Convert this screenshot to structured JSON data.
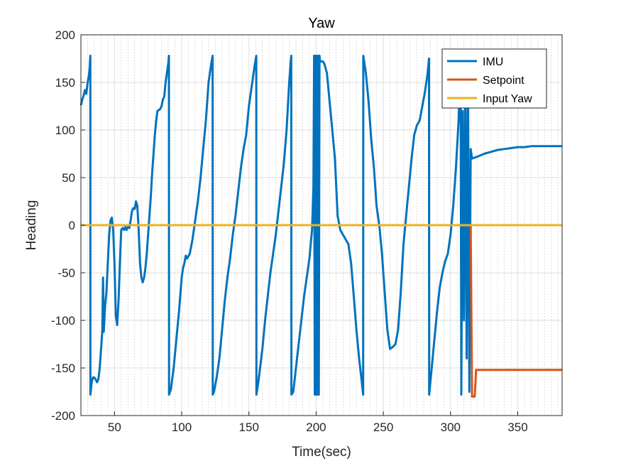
{
  "chart_data": {
    "type": "line",
    "title": "Yaw",
    "xlabel": "Time(sec)",
    "ylabel": "Heading",
    "xlim": [
      25,
      383
    ],
    "ylim": [
      -200,
      200
    ],
    "xticks": [
      50,
      100,
      150,
      200,
      250,
      300,
      350
    ],
    "yticks": [
      -200,
      -150,
      -100,
      -50,
      0,
      50,
      100,
      150,
      200
    ],
    "grid": true,
    "minor_x_grid_spacing": 5,
    "legend_position": "top-right",
    "series": [
      {
        "name": "IMU",
        "color": "#0072BD",
        "points": [
          [
            25,
            126
          ],
          [
            26,
            132
          ],
          [
            27,
            136
          ],
          [
            28,
            142
          ],
          [
            29,
            138
          ],
          [
            30,
            150
          ],
          [
            31,
            158
          ],
          [
            31.5,
            165
          ],
          [
            32,
            178
          ],
          [
            32.1,
            -178
          ],
          [
            33,
            -165
          ],
          [
            34,
            -160
          ],
          [
            35,
            -160
          ],
          [
            36,
            -162
          ],
          [
            37,
            -165
          ],
          [
            38,
            -162
          ],
          [
            39,
            -150
          ],
          [
            40,
            -130
          ],
          [
            41,
            -110
          ],
          [
            41.5,
            -55
          ],
          [
            42,
            -112
          ],
          [
            43,
            -85
          ],
          [
            44,
            -70
          ],
          [
            45,
            -40
          ],
          [
            46,
            -10
          ],
          [
            47,
            5
          ],
          [
            48,
            8
          ],
          [
            49,
            -5
          ],
          [
            50,
            -40
          ],
          [
            51,
            -95
          ],
          [
            52,
            -105
          ],
          [
            53,
            -80
          ],
          [
            54,
            -40
          ],
          [
            55,
            -5
          ],
          [
            56,
            -3
          ],
          [
            57,
            -5
          ],
          [
            58,
            -2
          ],
          [
            59,
            -5
          ],
          [
            60,
            -1
          ],
          [
            61,
            -3
          ],
          [
            62,
            5
          ],
          [
            63,
            15
          ],
          [
            64,
            18
          ],
          [
            65,
            17
          ],
          [
            66,
            25
          ],
          [
            67,
            20
          ],
          [
            68,
            -5
          ],
          [
            69,
            -40
          ],
          [
            70,
            -55
          ],
          [
            71,
            -60
          ],
          [
            72,
            -55
          ],
          [
            73,
            -45
          ],
          [
            74,
            -30
          ],
          [
            75,
            -10
          ],
          [
            76,
            10
          ],
          [
            77,
            30
          ],
          [
            78,
            55
          ],
          [
            79,
            75
          ],
          [
            80,
            95
          ],
          [
            81,
            110
          ],
          [
            82,
            120
          ],
          [
            84,
            122
          ],
          [
            85,
            125
          ],
          [
            86,
            132
          ],
          [
            87,
            135
          ],
          [
            88,
            150
          ],
          [
            89,
            160
          ],
          [
            90,
            170
          ],
          [
            90.5,
            178
          ],
          [
            90.6,
            -178
          ],
          [
            92,
            -172
          ],
          [
            94,
            -150
          ],
          [
            96,
            -120
          ],
          [
            98,
            -90
          ],
          [
            100,
            -55
          ],
          [
            101,
            -45
          ],
          [
            102,
            -40
          ],
          [
            103,
            -32
          ],
          [
            104,
            -35
          ],
          [
            106,
            -30
          ],
          [
            108,
            -15
          ],
          [
            110,
            5
          ],
          [
            112,
            25
          ],
          [
            114,
            50
          ],
          [
            116,
            80
          ],
          [
            118,
            110
          ],
          [
            119,
            130
          ],
          [
            120,
            150
          ],
          [
            121,
            160
          ],
          [
            122,
            170
          ],
          [
            123,
            178
          ],
          [
            123.1,
            -178
          ],
          [
            124,
            -175
          ],
          [
            126,
            -160
          ],
          [
            128,
            -140
          ],
          [
            130,
            -110
          ],
          [
            132,
            -80
          ],
          [
            134,
            -55
          ],
          [
            136,
            -35
          ],
          [
            138,
            -10
          ],
          [
            140,
            10
          ],
          [
            142,
            35
          ],
          [
            144,
            60
          ],
          [
            146,
            80
          ],
          [
            148,
            95
          ],
          [
            150,
            125
          ],
          [
            152,
            145
          ],
          [
            154,
            165
          ],
          [
            155.5,
            178
          ],
          [
            155.6,
            -178
          ],
          [
            157,
            -165
          ],
          [
            160,
            -130
          ],
          [
            162,
            -100
          ],
          [
            164,
            -75
          ],
          [
            166,
            -50
          ],
          [
            168,
            -30
          ],
          [
            170,
            -10
          ],
          [
            172,
            15
          ],
          [
            174,
            40
          ],
          [
            176,
            65
          ],
          [
            178,
            100
          ],
          [
            180,
            150
          ],
          [
            181,
            170
          ],
          [
            181.5,
            178
          ],
          [
            181.6,
            -178
          ],
          [
            183,
            -175
          ],
          [
            185,
            -150
          ],
          [
            187,
            -125
          ],
          [
            189,
            -100
          ],
          [
            191,
            -75
          ],
          [
            193,
            -55
          ],
          [
            195,
            -35
          ],
          [
            196,
            -20
          ],
          [
            197,
            -5
          ],
          [
            198,
            40
          ],
          [
            198.5,
            178
          ],
          [
            199,
            -178
          ],
          [
            199.5,
            178
          ],
          [
            200,
            -178
          ],
          [
            200.5,
            178
          ],
          [
            201,
            -178
          ],
          [
            201.5,
            178
          ],
          [
            202,
            -178
          ],
          [
            202.5,
            178
          ],
          [
            203,
            172
          ],
          [
            205,
            172
          ],
          [
            206,
            170
          ],
          [
            208,
            160
          ],
          [
            210,
            130
          ],
          [
            212,
            100
          ],
          [
            214,
            70
          ],
          [
            215,
            40
          ],
          [
            216,
            10
          ],
          [
            218,
            -5
          ],
          [
            220,
            -10
          ],
          [
            222,
            -15
          ],
          [
            224,
            -20
          ],
          [
            226,
            -40
          ],
          [
            228,
            -75
          ],
          [
            230,
            -110
          ],
          [
            232,
            -140
          ],
          [
            234,
            -165
          ],
          [
            235,
            -178
          ],
          [
            235.1,
            178
          ],
          [
            237,
            160
          ],
          [
            239,
            130
          ],
          [
            241,
            90
          ],
          [
            243,
            60
          ],
          [
            245,
            20
          ],
          [
            247,
            0
          ],
          [
            249,
            -30
          ],
          [
            251,
            -70
          ],
          [
            253,
            -110
          ],
          [
            255,
            -130
          ],
          [
            257,
            -128
          ],
          [
            259,
            -125
          ],
          [
            261,
            -110
          ],
          [
            263,
            -70
          ],
          [
            265,
            -20
          ],
          [
            267,
            10
          ],
          [
            269,
            40
          ],
          [
            271,
            70
          ],
          [
            273,
            95
          ],
          [
            275,
            105
          ],
          [
            277,
            110
          ],
          [
            279,
            125
          ],
          [
            281,
            140
          ],
          [
            283,
            160
          ],
          [
            284,
            175
          ],
          [
            284.1,
            -178
          ],
          [
            286,
            -150
          ],
          [
            288,
            -120
          ],
          [
            290,
            -90
          ],
          [
            292,
            -65
          ],
          [
            294,
            -50
          ],
          [
            296,
            -38
          ],
          [
            298,
            -30
          ],
          [
            300,
            -10
          ],
          [
            302,
            20
          ],
          [
            304,
            60
          ],
          [
            306,
            110
          ],
          [
            307,
            150
          ],
          [
            307.5,
            175
          ],
          [
            308,
            -178
          ],
          [
            309,
            120
          ],
          [
            310,
            -100
          ],
          [
            311,
            170
          ],
          [
            312,
            -140
          ],
          [
            313,
            160
          ],
          [
            314,
            -175
          ],
          [
            315,
            80
          ],
          [
            316,
            70
          ],
          [
            320,
            72
          ],
          [
            325,
            75
          ],
          [
            330,
            77
          ],
          [
            335,
            79
          ],
          [
            340,
            80
          ],
          [
            345,
            81
          ],
          [
            350,
            82
          ],
          [
            355,
            82
          ],
          [
            360,
            83
          ],
          [
            365,
            83
          ],
          [
            370,
            83
          ],
          [
            375,
            83
          ],
          [
            380,
            83
          ],
          [
            383,
            83
          ]
        ]
      },
      {
        "name": "Setpoint",
        "color": "#D95319",
        "points": [
          [
            25,
            0
          ],
          [
            315,
            0
          ],
          [
            316,
            -180
          ],
          [
            318,
            -180
          ],
          [
            319,
            -152
          ],
          [
            383,
            -152
          ]
        ]
      },
      {
        "name": "Input Yaw",
        "color": "#EDB120",
        "points": [
          [
            25,
            0
          ],
          [
            383,
            0
          ]
        ]
      }
    ]
  }
}
